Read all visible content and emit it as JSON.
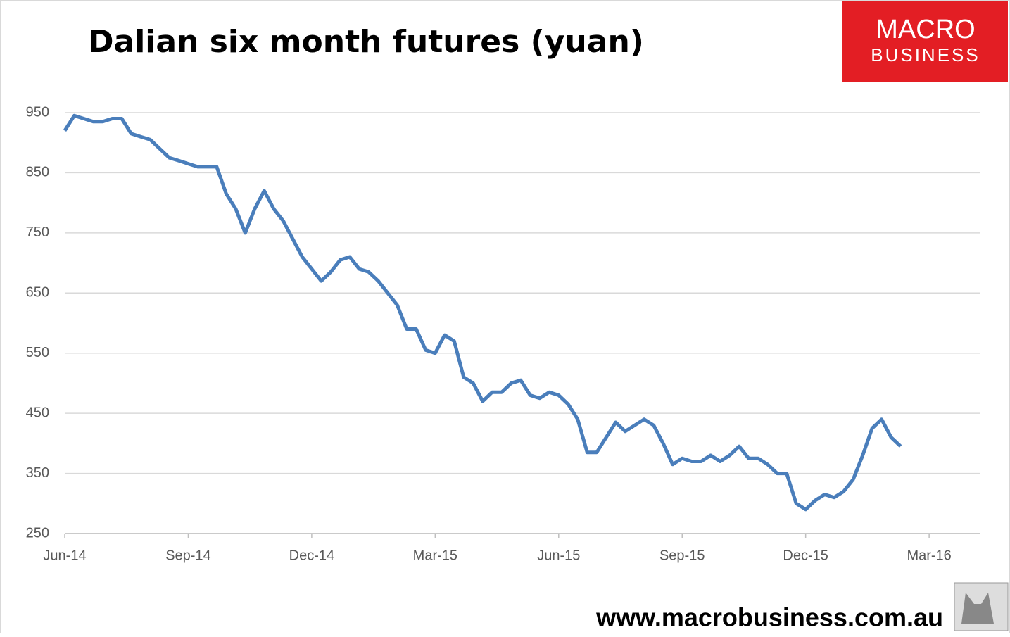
{
  "chart_data": {
    "type": "line",
    "title": "Dalian six month futures (yuan)",
    "brand": {
      "line1": "MACRO",
      "line2": "BUSINESS"
    },
    "footer": "www.macrobusiness.com.au",
    "categories": [
      "Jun-14",
      null,
      null,
      null,
      null,
      null,
      null,
      null,
      null,
      null,
      null,
      null,
      null,
      "Sep-14",
      null,
      null,
      null,
      null,
      null,
      null,
      null,
      null,
      null,
      null,
      null,
      null,
      "Dec-14",
      null,
      null,
      null,
      null,
      null,
      null,
      null,
      null,
      null,
      null,
      null,
      null,
      "Mar-15",
      null,
      null,
      null,
      null,
      null,
      null,
      null,
      null,
      null,
      null,
      null,
      null,
      "Jun-15",
      null,
      null,
      null,
      null,
      null,
      null,
      null,
      null,
      null,
      null,
      null,
      null,
      "Sep-15",
      null,
      null,
      null,
      null,
      null,
      null,
      null,
      null,
      null,
      null,
      null,
      null,
      "Dec-15",
      null,
      null,
      null,
      null,
      null,
      null,
      null,
      null,
      null,
      null,
      null,
      null,
      "Mar-16",
      null,
      null,
      null,
      null,
      null
    ],
    "values": [
      920,
      945,
      940,
      935,
      935,
      940,
      940,
      915,
      910,
      905,
      890,
      875,
      870,
      865,
      860,
      860,
      860,
      815,
      790,
      750,
      790,
      820,
      790,
      770,
      740,
      710,
      690,
      670,
      685,
      705,
      710,
      690,
      685,
      670,
      650,
      630,
      590,
      590,
      555,
      550,
      580,
      570,
      510,
      500,
      470,
      485,
      485,
      500,
      505,
      480,
      475,
      485,
      480,
      465,
      440,
      385,
      385,
      410,
      435,
      420,
      430,
      440,
      430,
      400,
      365,
      375,
      370,
      370,
      380,
      370,
      380,
      395,
      375,
      375,
      365,
      350,
      350,
      300,
      290,
      305,
      315,
      310,
      320,
      340,
      380,
      425,
      440,
      410,
      395,
      null,
      null,
      null,
      null,
      null,
      null,
      null,
      null
    ],
    "color": "#4a7ebb",
    "ylim": [
      250,
      950
    ],
    "yticks": [
      250,
      350,
      450,
      550,
      650,
      750,
      850,
      950
    ],
    "grid": true
  }
}
